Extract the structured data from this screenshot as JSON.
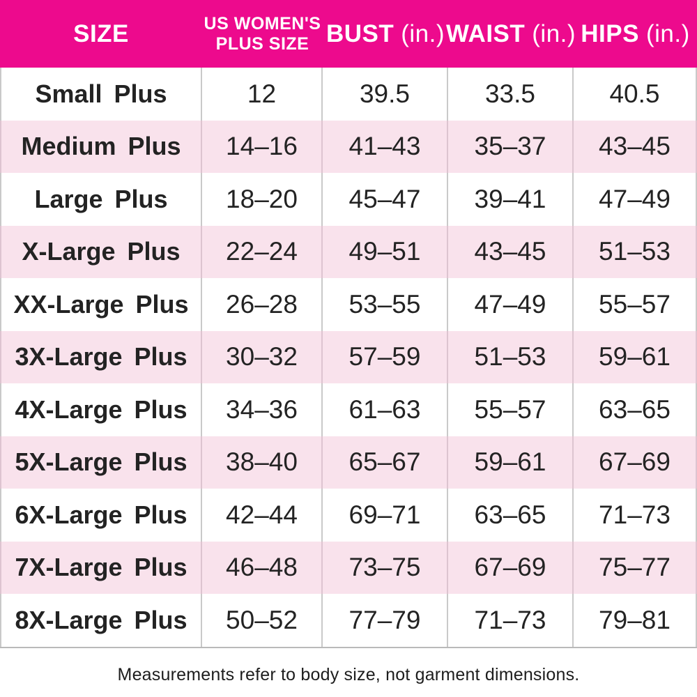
{
  "colors": {
    "header_bg": "#ED0A8D",
    "header_text": "#FFFFFF",
    "row_alt_bg": "#F9E2EC",
    "grid_line": "#C9C9C9",
    "body_text": "#232323"
  },
  "header": {
    "size": "SIZE",
    "plus_line1": "US WOMEN'S",
    "plus_line2": "PLUS SIZE",
    "bust": "BUST",
    "bust_unit": "(in.)",
    "waist": "WAIST",
    "waist_unit": "(in.)",
    "hips": "HIPS",
    "hips_unit": "(in.)"
  },
  "chart_data": {
    "type": "table",
    "columns": [
      "SIZE",
      "US WOMEN'S PLUS SIZE",
      "BUST (in.)",
      "WAIST (in.)",
      "HIPS (in.)"
    ],
    "rows": [
      [
        "Small Plus",
        "12",
        "39.5",
        "33.5",
        "40.5"
      ],
      [
        "Medium Plus",
        "14–16",
        "41–43",
        "35–37",
        "43–45"
      ],
      [
        "Large Plus",
        "18–20",
        "45–47",
        "39–41",
        "47–49"
      ],
      [
        "X-Large Plus",
        "22–24",
        "49–51",
        "43–45",
        "51–53"
      ],
      [
        "XX-Large Plus",
        "26–28",
        "53–55",
        "47–49",
        "55–57"
      ],
      [
        "3X-Large Plus",
        "30–32",
        "57–59",
        "51–53",
        "59–61"
      ],
      [
        "4X-Large Plus",
        "34–36",
        "61–63",
        "55–57",
        "63–65"
      ],
      [
        "5X-Large Plus",
        "38–40",
        "65–67",
        "59–61",
        "67–69"
      ],
      [
        "6X-Large Plus",
        "42–44",
        "69–71",
        "63–65",
        "71–73"
      ],
      [
        "7X-Large Plus",
        "46–48",
        "73–75",
        "67–69",
        "75–77"
      ],
      [
        "8X-Large Plus",
        "50–52",
        "77–79",
        "71–73",
        "79–81"
      ]
    ],
    "footnote": "Measurements refer to body size, not garment dimensions."
  }
}
